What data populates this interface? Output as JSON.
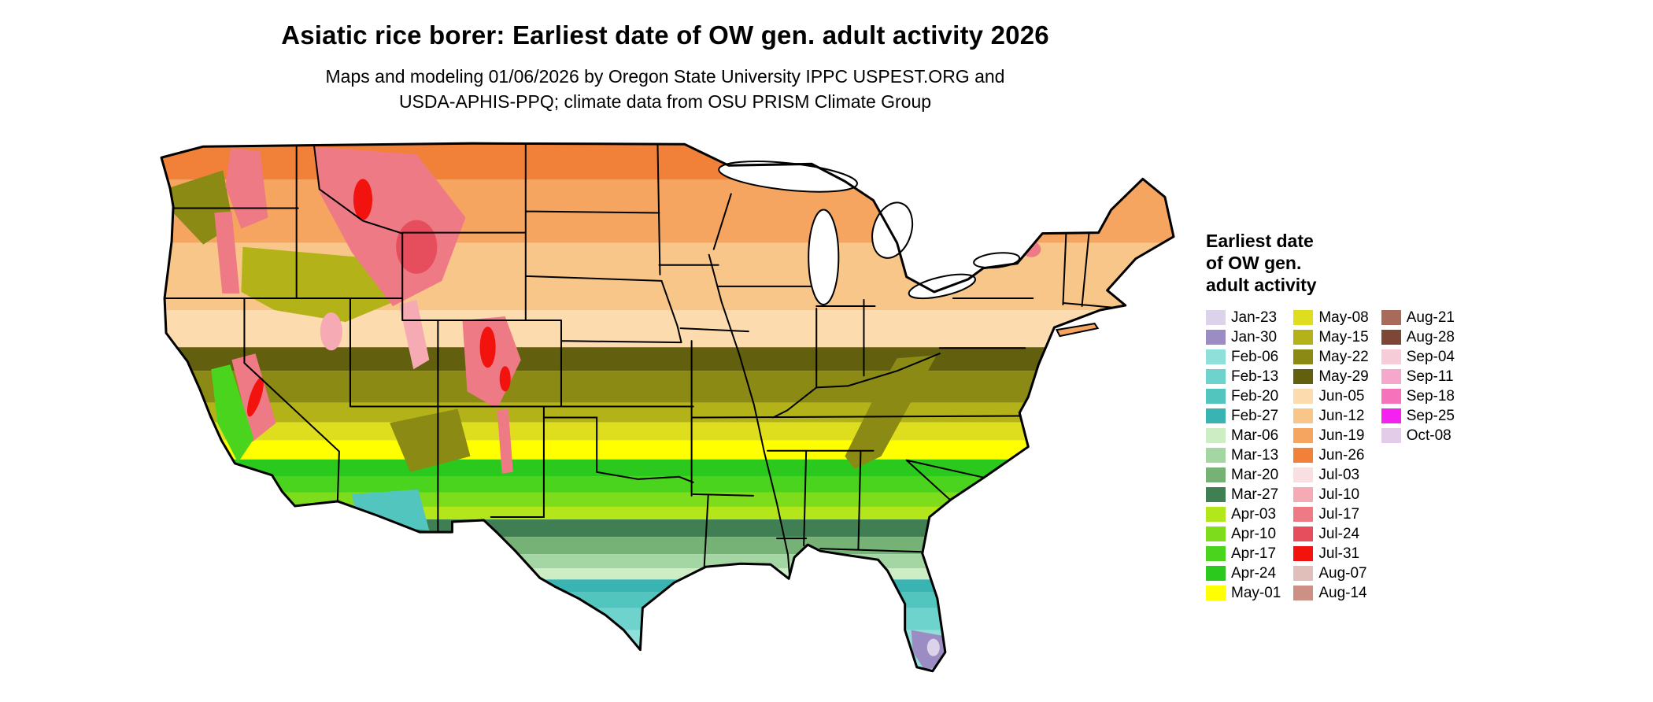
{
  "header": {
    "title": "Asiatic rice borer: Earliest date of OW gen. adult activity 2026",
    "subtitle_line1": "Maps and modeling 01/06/2026 by Oregon State University IPPC USPEST.ORG and",
    "subtitle_line2": "USDA-APHIS-PPQ; climate data from OSU PRISM Climate Group"
  },
  "legend": {
    "title_lines": [
      "Earliest date",
      "of OW gen.",
      "adult activity"
    ],
    "columns": [
      [
        {
          "label": "Jan-23",
          "color": "#dcd3ea"
        },
        {
          "label": "Jan-30",
          "color": "#9b8cc3"
        },
        {
          "label": "Feb-06",
          "color": "#8fe0da"
        },
        {
          "label": "Feb-13",
          "color": "#6ed3cc"
        },
        {
          "label": "Feb-20",
          "color": "#52c5bf"
        },
        {
          "label": "Feb-27",
          "color": "#3ab3b3"
        },
        {
          "label": "Mar-06",
          "color": "#cdeec4"
        },
        {
          "label": "Mar-13",
          "color": "#a4d6a4"
        },
        {
          "label": "Mar-20",
          "color": "#76b176"
        },
        {
          "label": "Mar-27",
          "color": "#3f7f53"
        },
        {
          "label": "Apr-03",
          "color": "#b4e61c"
        },
        {
          "label": "Apr-10",
          "color": "#7ddc1c"
        },
        {
          "label": "Apr-17",
          "color": "#4bd41e"
        },
        {
          "label": "Apr-24",
          "color": "#2bc81e"
        },
        {
          "label": "May-01",
          "color": "#ffff00"
        }
      ],
      [
        {
          "label": "May-08",
          "color": "#dede1f"
        },
        {
          "label": "May-15",
          "color": "#b3b319"
        },
        {
          "label": "May-22",
          "color": "#8a8a14"
        },
        {
          "label": "May-29",
          "color": "#62600f"
        },
        {
          "label": "Jun-05",
          "color": "#fcdcae"
        },
        {
          "label": "Jun-12",
          "color": "#f9c689"
        },
        {
          "label": "Jun-19",
          "color": "#f5a55f"
        },
        {
          "label": "Jun-26",
          "color": "#f18138"
        },
        {
          "label": "Jul-03",
          "color": "#fadfe2"
        },
        {
          "label": "Jul-10",
          "color": "#f6aab4"
        },
        {
          "label": "Jul-17",
          "color": "#ee7a85"
        },
        {
          "label": "Jul-24",
          "color": "#e64e5d"
        },
        {
          "label": "Jul-31",
          "color": "#f2130f"
        },
        {
          "label": "Aug-07",
          "color": "#e0bfba"
        },
        {
          "label": "Aug-14",
          "color": "#cc9184"
        }
      ],
      [
        {
          "label": "Aug-21",
          "color": "#a96a5c"
        },
        {
          "label": "Aug-28",
          "color": "#7e4637"
        },
        {
          "label": "Sep-04",
          "color": "#f6ccd8"
        },
        {
          "label": "Sep-11",
          "color": "#f5a8cb"
        },
        {
          "label": "Sep-18",
          "color": "#f673bb"
        },
        {
          "label": "Sep-25",
          "color": "#f322f1"
        },
        {
          "label": "Oct-08",
          "color": "#e2cce7"
        }
      ]
    ]
  }
}
